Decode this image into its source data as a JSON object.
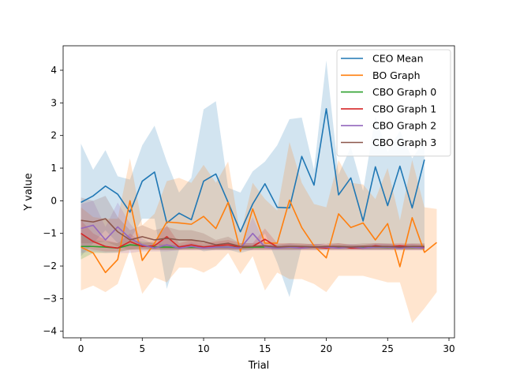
{
  "chart_data": {
    "type": "line",
    "title": "",
    "xlabel": "Trial",
    "ylabel": "Y value",
    "xlim": [
      -1.45,
      30.45
    ],
    "ylim": [
      -4.2,
      4.75
    ],
    "xticks": [
      0,
      5,
      10,
      15,
      20,
      25,
      30
    ],
    "yticks": [
      -4,
      -3,
      -2,
      -1,
      0,
      1,
      2,
      3,
      4
    ],
    "grid": false,
    "legend_position": "upper right",
    "series": [
      {
        "name": "CEO Mean",
        "color": "#1f77b4",
        "x": [
          0,
          1,
          2,
          3,
          4,
          5,
          6,
          7,
          8,
          9,
          10,
          11,
          12,
          13,
          14,
          15,
          16,
          17,
          18,
          19,
          20,
          21,
          22,
          23,
          24,
          25,
          26,
          27,
          28
        ],
        "values": [
          -0.05,
          0.15,
          0.45,
          0.2,
          -0.35,
          0.6,
          0.88,
          -0.68,
          -0.38,
          -0.58,
          0.6,
          0.82,
          -0.05,
          -0.95,
          -0.1,
          0.52,
          -0.2,
          -0.22,
          1.36,
          0.48,
          2.82,
          0.18,
          0.7,
          -0.62,
          1.04,
          -0.15,
          1.06,
          -0.22,
          1.26
        ],
        "lower": [
          -1.7,
          -1.3,
          -0.9,
          -1.3,
          -1.2,
          -0.55,
          -0.55,
          -2.7,
          -1.5,
          -1.4,
          -1.55,
          -1.5,
          -1.5,
          -1.6,
          -1.5,
          -1.0,
          -1.9,
          -2.95,
          -1.4,
          -1.4,
          -1.3,
          -1.45,
          -1.45,
          -1.5,
          -1.5,
          -1.5,
          -1.5,
          -1.5,
          -1.5
        ],
        "upper": [
          1.75,
          0.95,
          1.55,
          0.75,
          0.65,
          1.7,
          2.3,
          1.2,
          0.25,
          0.7,
          2.8,
          3.05,
          0.4,
          0.25,
          0.9,
          1.2,
          1.7,
          2.5,
          2.55,
          0.95,
          4.3,
          0.8,
          1.65,
          0.3,
          2.6,
          1.5,
          2.15,
          1.3,
          1.85
        ]
      },
      {
        "name": "BO Graph",
        "color": "#ff7f0e",
        "x": [
          0,
          1,
          2,
          3,
          4,
          5,
          6,
          7,
          8,
          9,
          10,
          11,
          12,
          13,
          14,
          15,
          16,
          17,
          18,
          19,
          20,
          21,
          22,
          23,
          24,
          25,
          26,
          27,
          28,
          29
        ],
        "values": [
          -1.42,
          -1.6,
          -2.2,
          -1.8,
          0.0,
          -1.83,
          -1.3,
          -0.65,
          -0.68,
          -0.72,
          -0.48,
          -0.85,
          -0.05,
          -1.55,
          -0.25,
          -1.3,
          -1.3,
          0.02,
          -0.82,
          -1.38,
          -1.75,
          -0.4,
          -0.82,
          -0.68,
          -1.2,
          -0.7,
          -2.02,
          -0.52,
          -1.58,
          -1.28
        ],
        "lower": [
          -2.75,
          -2.6,
          -2.8,
          -2.55,
          -1.5,
          -2.85,
          -2.35,
          -2.5,
          -2.05,
          -2.05,
          -2.2,
          -2.0,
          -1.6,
          -2.25,
          -1.7,
          -2.75,
          -2.2,
          -2.4,
          -2.4,
          -2.55,
          -2.8,
          -2.3,
          -2.3,
          -2.3,
          -2.4,
          -2.5,
          -2.5,
          -3.75,
          -3.3,
          -2.8
        ],
        "upper": [
          -0.2,
          -0.5,
          -0.55,
          -0.55,
          1.3,
          -0.75,
          -0.4,
          0.6,
          0.7,
          0.55,
          1.1,
          0.55,
          1.2,
          -1.05,
          0.55,
          0.05,
          -0.3,
          1.8,
          0.55,
          -0.1,
          -0.2,
          1.25,
          0.55,
          0.5,
          0.05,
          1.0,
          -0.6,
          1.25,
          -0.2,
          -0.25
        ]
      },
      {
        "name": "CBO Graph 0",
        "color": "#2ca02c",
        "x": [
          0,
          1,
          2,
          3,
          4,
          5,
          6,
          7,
          8,
          9,
          10,
          11,
          12,
          13,
          14,
          15,
          16,
          17,
          18,
          19,
          20,
          21,
          22,
          23,
          24,
          25,
          26,
          27,
          28
        ],
        "values": [
          -1.4,
          -1.4,
          -1.42,
          -1.45,
          -1.35,
          -1.38,
          -1.42,
          -1.42,
          -1.43,
          -1.43,
          -1.43,
          -1.42,
          -1.42,
          -1.43,
          -1.42,
          -1.42,
          -1.43,
          -1.42,
          -1.43,
          -1.42,
          -1.43,
          -1.42,
          -1.43,
          -1.42,
          -1.42,
          -1.43,
          -1.42,
          -1.43,
          -1.42
        ],
        "lower": [
          -1.8,
          -1.6,
          -1.6,
          -1.58,
          -1.5,
          -1.5,
          -1.5,
          -1.5,
          -1.5,
          -1.48,
          -1.48,
          -1.48,
          -1.48,
          -1.48,
          -1.48,
          -1.48,
          -1.48,
          -1.48,
          -1.48,
          -1.48,
          -1.48,
          -1.48,
          -1.48,
          -1.48,
          -1.48,
          -1.48,
          -1.48,
          -1.48,
          -1.48
        ],
        "upper": [
          -1.0,
          -1.2,
          -1.25,
          -1.3,
          -1.2,
          -1.25,
          -1.3,
          -1.35,
          -1.36,
          -1.37,
          -1.37,
          -1.37,
          -1.37,
          -1.37,
          -1.37,
          -1.37,
          -1.37,
          -1.37,
          -1.37,
          -1.37,
          -1.37,
          -1.37,
          -1.37,
          -1.37,
          -1.37,
          -1.37,
          -1.37,
          -1.37,
          -1.37
        ]
      },
      {
        "name": "CBO Graph 1",
        "color": "#d62728",
        "x": [
          0,
          1,
          2,
          3,
          4,
          5,
          6,
          7,
          8,
          9,
          10,
          11,
          12,
          13,
          14,
          15,
          16,
          17,
          18,
          19,
          20,
          21,
          22,
          23,
          24,
          25,
          26,
          27,
          28
        ],
        "values": [
          -1.0,
          -1.25,
          -1.4,
          -1.45,
          -1.25,
          -1.4,
          -1.38,
          -1.1,
          -1.42,
          -1.35,
          -1.42,
          -1.38,
          -1.35,
          -1.42,
          -1.4,
          -1.18,
          -1.42,
          -1.4,
          -1.42,
          -1.42,
          -1.45,
          -1.4,
          -1.45,
          -1.45,
          -1.38,
          -1.42,
          -1.38,
          -1.42,
          -1.42
        ],
        "lower": [
          -1.4,
          -1.5,
          -1.55,
          -1.55,
          -1.5,
          -1.5,
          -1.5,
          -1.5,
          -1.5,
          -1.5,
          -1.5,
          -1.5,
          -1.5,
          -1.5,
          -1.5,
          -1.5,
          -1.5,
          -1.5,
          -1.5,
          -1.5,
          -1.5,
          -1.5,
          -1.5,
          -1.5,
          -1.5,
          -1.5,
          -1.5,
          -1.5,
          -1.5
        ],
        "upper": [
          -0.6,
          -1.0,
          -1.2,
          -1.3,
          -1.0,
          -1.3,
          -1.25,
          -0.75,
          -1.3,
          -1.2,
          -1.3,
          -1.25,
          -1.2,
          -1.3,
          -1.3,
          -0.85,
          -1.3,
          -1.3,
          -1.32,
          -1.32,
          -1.35,
          -1.3,
          -1.35,
          -1.35,
          -1.3,
          -1.32,
          -1.3,
          -1.32,
          -1.32
        ]
      },
      {
        "name": "CBO Graph 2",
        "color": "#9467bd",
        "x": [
          0,
          1,
          2,
          3,
          4,
          5,
          6,
          7,
          8,
          9,
          10,
          11,
          12,
          13,
          14,
          15,
          16,
          17,
          18,
          19,
          20,
          21,
          22,
          23,
          24,
          25,
          26,
          27,
          28
        ],
        "values": [
          -0.85,
          -0.75,
          -1.2,
          -0.8,
          -1.15,
          -1.35,
          -1.45,
          -1.35,
          -1.45,
          -1.4,
          -1.45,
          -1.42,
          -1.42,
          -1.45,
          -1.0,
          -1.42,
          -1.45,
          -1.42,
          -1.45,
          -1.42,
          -1.42,
          -1.45,
          -1.42,
          -1.45,
          -1.42,
          -1.42,
          -1.45,
          -1.42,
          -1.45
        ],
        "lower": [
          -1.6,
          -1.55,
          -1.6,
          -1.6,
          -1.6,
          -1.55,
          -1.55,
          -1.55,
          -1.52,
          -1.52,
          -1.52,
          -1.52,
          -1.52,
          -1.52,
          -1.52,
          -1.52,
          -1.52,
          -1.52,
          -1.52,
          -1.52,
          -1.52,
          -1.52,
          -1.52,
          -1.52,
          -1.52,
          -1.52,
          -1.52,
          -1.52,
          -1.52
        ],
        "upper": [
          -0.1,
          0.0,
          -0.8,
          -0.05,
          -0.7,
          -1.15,
          -1.35,
          -1.15,
          -1.38,
          -1.28,
          -1.38,
          -1.32,
          -1.32,
          -1.38,
          -0.5,
          -1.32,
          -1.38,
          -1.32,
          -1.38,
          -1.32,
          -1.32,
          -1.38,
          -1.32,
          -1.38,
          -1.32,
          -1.32,
          -1.38,
          -1.32,
          -1.38
        ]
      },
      {
        "name": "CBO Graph 3",
        "color": "#8c564b",
        "x": [
          0,
          1,
          2,
          3,
          4,
          5,
          6,
          7,
          8,
          9,
          10,
          11,
          12,
          13,
          14,
          15,
          16,
          17,
          18,
          19,
          20,
          21,
          22,
          23,
          24,
          25,
          26,
          27,
          28
        ],
        "values": [
          -0.6,
          -0.65,
          -0.55,
          -0.95,
          -1.2,
          -1.1,
          -1.2,
          -1.15,
          -1.2,
          -1.2,
          -1.25,
          -1.35,
          -1.3,
          -1.4,
          -1.4,
          -1.38,
          -1.42,
          -1.4,
          -1.4,
          -1.42,
          -1.4,
          -1.4,
          -1.42,
          -1.4,
          -1.4,
          -1.4,
          -1.42,
          -1.4,
          -1.4
        ],
        "lower": [
          -1.3,
          -1.3,
          -1.25,
          -1.4,
          -1.5,
          -1.45,
          -1.5,
          -1.5,
          -1.5,
          -1.5,
          -1.5,
          -1.5,
          -1.5,
          -1.5,
          -1.5,
          -1.5,
          -1.5,
          -1.5,
          -1.5,
          -1.5,
          -1.5,
          -1.5,
          -1.5,
          -1.5,
          -1.5,
          -1.5,
          -1.5,
          -1.5,
          -1.5
        ],
        "upper": [
          0.1,
          0.0,
          0.15,
          -0.5,
          -0.9,
          -0.75,
          -0.9,
          -0.8,
          -0.9,
          -0.9,
          -1.0,
          -1.2,
          -1.1,
          -1.3,
          -1.3,
          -1.26,
          -1.34,
          -1.3,
          -1.3,
          -1.34,
          -1.3,
          -1.3,
          -1.34,
          -1.3,
          -1.3,
          -1.3,
          -1.34,
          -1.3,
          -1.3
        ]
      }
    ]
  }
}
